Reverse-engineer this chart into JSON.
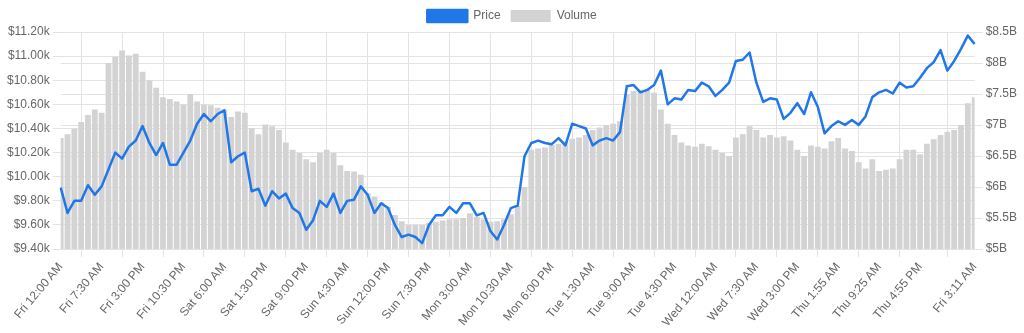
{
  "chart_data": {
    "type": "line",
    "categories": [
      "Fri 12:00 AM",
      null,
      null,
      null,
      null,
      null,
      "Fri 7:30 AM",
      null,
      null,
      null,
      null,
      null,
      "Fri 3:00 PM",
      null,
      null,
      null,
      null,
      null,
      "Fri 10:30 PM",
      null,
      null,
      null,
      null,
      null,
      "Sat 6:00 AM",
      null,
      null,
      null,
      null,
      null,
      "Sat 1:30 PM",
      null,
      null,
      null,
      null,
      null,
      "Sat 9:00 PM",
      null,
      null,
      null,
      null,
      null,
      "Sun 4:30 AM",
      null,
      null,
      null,
      null,
      null,
      "Sun 12:00 PM",
      null,
      null,
      null,
      null,
      null,
      "Sun 7:30 PM",
      null,
      null,
      null,
      null,
      null,
      "Mon 3:00 AM",
      null,
      null,
      null,
      null,
      null,
      "Mon 10:30 AM",
      null,
      null,
      null,
      null,
      null,
      "Mon 6:00 PM",
      null,
      null,
      null,
      null,
      null,
      "Tue 1:30 AM",
      null,
      null,
      null,
      null,
      null,
      "Tue 9:00 AM",
      null,
      null,
      null,
      null,
      null,
      "Tue 4:30 PM",
      null,
      null,
      null,
      null,
      null,
      "Wed 12:00 AM",
      null,
      null,
      null,
      null,
      null,
      "Wed 7:30 AM",
      null,
      null,
      null,
      null,
      null,
      "Wed 3:00 PM",
      null,
      null,
      null,
      null,
      null,
      "Thu 1:55 AM",
      null,
      null,
      null,
      null,
      null,
      "Thu 9:25 AM",
      null,
      null,
      null,
      null,
      null,
      "Thu 4:55 PM",
      null,
      null,
      null,
      null,
      null,
      null,
      null,
      "Fri 3:11 AM"
    ],
    "series": [
      {
        "name": "Price",
        "color": "#2176e8",
        "values": [
          9.91,
          9.7,
          9.8,
          9.8,
          9.93,
          9.85,
          9.92,
          10.06,
          10.2,
          10.15,
          10.25,
          10.3,
          10.42,
          10.28,
          10.18,
          10.28,
          10.1,
          10.1,
          10.2,
          10.3,
          10.44,
          10.52,
          10.46,
          10.52,
          10.55,
          10.12,
          10.17,
          10.2,
          9.88,
          9.9,
          9.76,
          9.88,
          9.82,
          9.86,
          9.74,
          9.7,
          9.56,
          9.64,
          9.8,
          9.75,
          9.86,
          9.7,
          9.8,
          9.81,
          9.92,
          9.85,
          9.7,
          9.78,
          9.74,
          9.6,
          9.5,
          9.52,
          9.5,
          9.45,
          9.6,
          9.68,
          9.68,
          9.75,
          9.7,
          9.78,
          9.78,
          9.68,
          9.7,
          9.55,
          9.48,
          9.6,
          9.74,
          9.76,
          10.17,
          10.28,
          10.3,
          10.28,
          10.27,
          10.32,
          10.26,
          10.44,
          10.42,
          10.4,
          10.26,
          10.3,
          10.32,
          10.3,
          10.37,
          10.75,
          10.76,
          10.7,
          10.72,
          10.76,
          10.88,
          10.6,
          10.65,
          10.64,
          10.72,
          10.71,
          10.78,
          10.75,
          10.67,
          10.72,
          10.78,
          10.96,
          10.97,
          11.03,
          10.78,
          10.62,
          10.65,
          10.64,
          10.48,
          10.53,
          10.61,
          10.52,
          10.7,
          10.58,
          10.36,
          10.42,
          10.46,
          10.43,
          10.47,
          10.43,
          10.5,
          10.66,
          10.7,
          10.72,
          10.69,
          10.78,
          10.74,
          10.75,
          10.82,
          10.9,
          10.95,
          11.05,
          10.88,
          10.96,
          11.06,
          11.17,
          11.1
        ]
      },
      {
        "name": "Volume",
        "type": "bar",
        "axis": "y2",
        "color": "#d3d3d3",
        "values": [
          6.79,
          6.85,
          6.94,
          7.05,
          7.16,
          7.25,
          7.2,
          8.0,
          8.1,
          8.2,
          8.12,
          8.15,
          7.86,
          7.72,
          7.6,
          7.45,
          7.42,
          7.38,
          7.33,
          7.5,
          7.38,
          7.33,
          7.32,
          7.28,
          7.25,
          7.13,
          7.22,
          7.2,
          6.95,
          6.85,
          7.01,
          6.98,
          6.92,
          6.72,
          6.6,
          6.55,
          6.45,
          6.4,
          6.55,
          6.6,
          6.55,
          6.35,
          6.26,
          6.25,
          6.2,
          5.9,
          5.85,
          5.75,
          5.68,
          5.55,
          5.45,
          5.39,
          5.39,
          5.39,
          5.42,
          5.44,
          5.46,
          5.48,
          5.48,
          5.5,
          5.58,
          5.52,
          5.48,
          5.44,
          5.45,
          5.48,
          5.56,
          5.7,
          6.0,
          6.6,
          6.62,
          6.64,
          6.68,
          6.7,
          6.74,
          6.78,
          6.8,
          6.84,
          6.92,
          6.96,
          7.0,
          7.02,
          7.06,
          7.5,
          7.55,
          7.57,
          7.57,
          7.52,
          7.25,
          7.02,
          6.84,
          6.72,
          6.67,
          6.65,
          6.7,
          6.66,
          6.6,
          6.55,
          6.5,
          6.8,
          6.85,
          6.98,
          6.92,
          6.8,
          6.84,
          6.8,
          6.82,
          6.75,
          6.6,
          6.5,
          6.67,
          6.65,
          6.62,
          6.74,
          6.79,
          6.62,
          6.58,
          6.4,
          6.3,
          6.45,
          6.26,
          6.28,
          6.3,
          6.45,
          6.6,
          6.6,
          6.53,
          6.7,
          6.77,
          6.84,
          6.89,
          6.92,
          7.0,
          7.35,
          7.45
        ]
      }
    ],
    "ylim": [
      9.4,
      11.2
    ],
    "yticks": [
      {
        "value": 9.4,
        "label": "$9.40k"
      },
      {
        "value": 9.6,
        "label": "$9.60k"
      },
      {
        "value": 9.8,
        "label": "$9.80k"
      },
      {
        "value": 10.0,
        "label": "$10.00k"
      },
      {
        "value": 10.2,
        "label": "$10.20k"
      },
      {
        "value": 10.4,
        "label": "$10.40k"
      },
      {
        "value": 10.6,
        "label": "$10.60k"
      },
      {
        "value": 10.8,
        "label": "$10.80k"
      },
      {
        "value": 11.0,
        "label": "$11.00k"
      },
      {
        "value": 11.2,
        "label": "$11.20k"
      }
    ],
    "y2lim": [
      5,
      8.5
    ],
    "y2ticks": [
      {
        "value": 5,
        "label": "$5B"
      },
      {
        "value": 5.5,
        "label": "$5.5B"
      },
      {
        "value": 6,
        "label": "$6B"
      },
      {
        "value": 6.5,
        "label": "$6.5B"
      },
      {
        "value": 7,
        "label": "$7B"
      },
      {
        "value": 7.5,
        "label": "$7.5B"
      },
      {
        "value": 8,
        "label": "$8B"
      },
      {
        "value": 8.5,
        "label": "$8.5B"
      }
    ],
    "grid": true,
    "legend": "top",
    "marker": "none",
    "line_style": "solid"
  }
}
